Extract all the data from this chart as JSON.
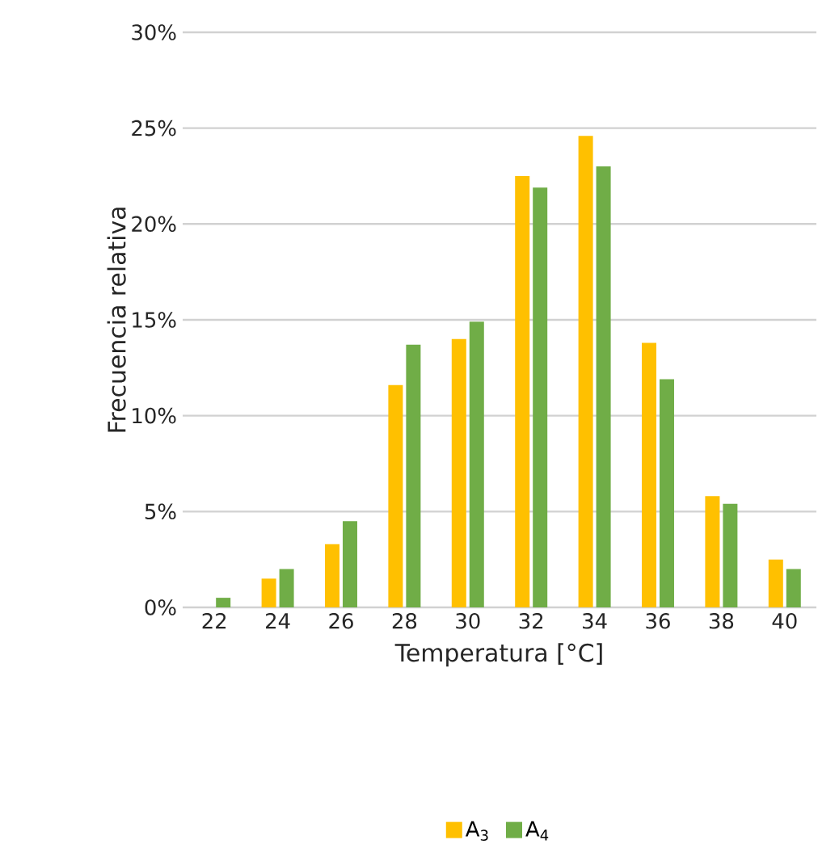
{
  "chart_data": {
    "type": "bar",
    "xlabel": "Temperatura [°C]",
    "ylabel": "Frecuencia relativa",
    "categories": [
      "22",
      "24",
      "26",
      "28",
      "30",
      "32",
      "34",
      "36",
      "38",
      "40"
    ],
    "series": [
      {
        "name": "A$_{3}$",
        "color": "#ffc000",
        "values": [
          0,
          1.5,
          3.3,
          11.6,
          14.0,
          22.5,
          24.6,
          13.8,
          5.8,
          2.5
        ]
      },
      {
        "name": "A$_{4}$",
        "color": "#70ad47",
        "values": [
          0.5,
          2.0,
          4.5,
          13.7,
          14.9,
          21.9,
          23.0,
          11.9,
          5.4,
          2.0
        ]
      }
    ],
    "ylim": [
      0,
      30
    ],
    "yticks": [
      {
        "value": 0,
        "label": "0%"
      },
      {
        "value": 5,
        "label": "5%"
      },
      {
        "value": 10,
        "label": "10%"
      },
      {
        "value": 15,
        "label": "15%"
      },
      {
        "value": 20,
        "label": "20%"
      },
      {
        "value": 25,
        "label": "25%"
      },
      {
        "value": 30,
        "label": "30%"
      }
    ],
    "grid": "y",
    "legend": "bottom"
  }
}
